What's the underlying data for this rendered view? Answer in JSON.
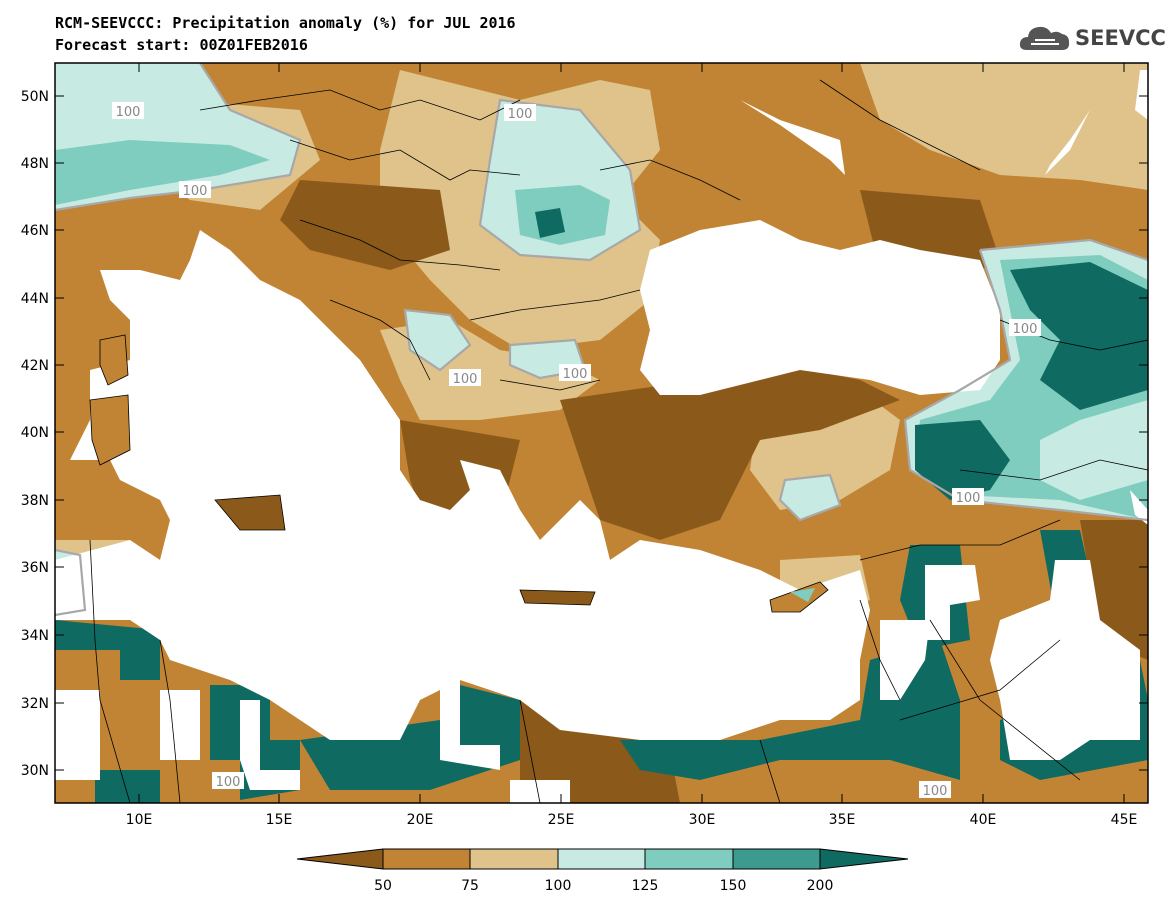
{
  "header": {
    "title": "RCM-SEEVCCC: Precipitation anomaly (%) for JUL 2016",
    "subtitle": "Forecast start: 00Z01FEB2016"
  },
  "logo": {
    "text": "SEEVCCC",
    "icon": "cloud-icon"
  },
  "map": {
    "lat_labels": [
      "50N",
      "48N",
      "46N",
      "44N",
      "42N",
      "40N",
      "38N",
      "36N",
      "34N",
      "32N",
      "30N"
    ],
    "lon_labels": [
      "10E",
      "15E",
      "20E",
      "25E",
      "30E",
      "35E",
      "40E",
      "45E"
    ],
    "contour_labels": [
      "100",
      "100",
      "100",
      "100",
      "100",
      "100",
      "100",
      "100",
      "100"
    ]
  },
  "colorbar": {
    "labels": [
      "50",
      "75",
      "100",
      "125",
      "150",
      "200"
    ],
    "colors": [
      "#8b5a1b",
      "#c08434",
      "#dfc38a",
      "#c7ebe3",
      "#7fcdbf",
      "#3c9a8e",
      "#0f6a62"
    ]
  }
}
